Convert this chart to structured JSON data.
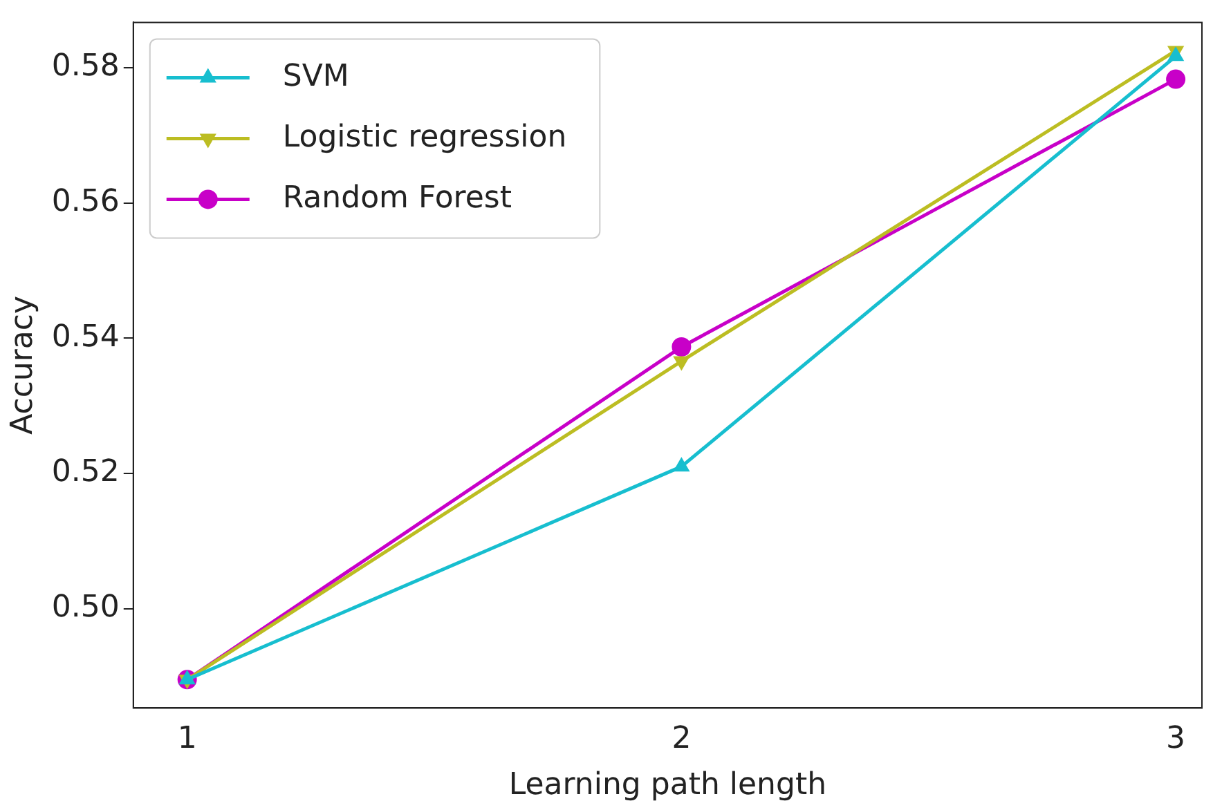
{
  "chart_data": {
    "type": "line",
    "xlabel": "Learning path length",
    "ylabel": "Accuracy",
    "x": [
      1,
      2,
      3
    ],
    "series": [
      {
        "name": "SVM",
        "color": "#17becf",
        "marker": "triangle",
        "values": [
          0.4895,
          0.521,
          0.5817
        ]
      },
      {
        "name": "Logistic regression",
        "color": "#bcbd22",
        "marker": "triangle-down",
        "values": [
          0.4895,
          0.5366,
          0.5825
        ]
      },
      {
        "name": "Random Forest",
        "color": "#c800c8",
        "marker": "circle",
        "values": [
          0.4895,
          0.5387,
          0.5783
        ]
      }
    ],
    "xlim": [
      0.891,
      3.053
    ],
    "xticks": [
      1,
      2,
      3
    ],
    "ylim": [
      0.4853,
      0.5867
    ],
    "yticks": [
      {
        "value": 0.5,
        "label": "0.50"
      },
      {
        "value": 0.52,
        "label": "0.52"
      },
      {
        "value": 0.54,
        "label": "0.54"
      },
      {
        "value": 0.56,
        "label": "0.56"
      },
      {
        "value": 0.58,
        "label": "0.58"
      }
    ],
    "grid": false,
    "legend": "top left",
    "line_style": "solid"
  }
}
